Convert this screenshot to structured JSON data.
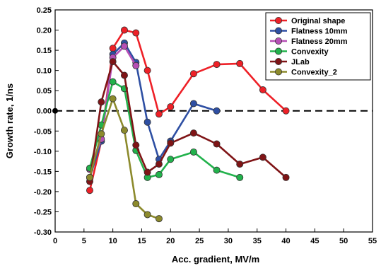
{
  "chart_data": {
    "type": "line",
    "xlabel": "Acc. gradient, MV/m",
    "ylabel": "Growth rate, 1/ns",
    "xlim": [
      0,
      55
    ],
    "ylim": [
      -0.3,
      0.25
    ],
    "xticks": [
      "0",
      "5",
      "10",
      "15",
      "20",
      "25",
      "30",
      "35",
      "40",
      "45",
      "50",
      "55"
    ],
    "yticks": [
      "-0.30",
      "-0.25",
      "-0.20",
      "-0.15",
      "-0.10",
      "-0.05",
      "0.00",
      "0.05",
      "0.10",
      "0.15",
      "0.20",
      "0.25"
    ],
    "grid": false,
    "legend_position": "top-right",
    "reference_line": {
      "y": 0,
      "style": "dashed"
    },
    "origin_marker": {
      "x": 0,
      "y": 0,
      "color": "#000000"
    },
    "series": [
      {
        "name": "Original shape",
        "color": "#ee2027",
        "x": [
          6,
          8,
          10,
          12,
          14,
          16,
          18,
          20,
          24,
          28,
          32,
          36,
          40
        ],
        "y": [
          -0.197,
          -0.075,
          0.155,
          0.2,
          0.193,
          0.1,
          -0.008,
          0.01,
          0.092,
          0.115,
          0.117,
          0.052,
          0.0
        ]
      },
      {
        "name": "Flatness 10mm",
        "color": "#2e4fa3",
        "x": [
          6,
          8,
          10,
          12,
          14,
          16,
          18,
          20,
          24,
          28
        ],
        "y": [
          -0.165,
          -0.075,
          0.14,
          0.168,
          0.12,
          -0.028,
          -0.12,
          -0.075,
          0.018,
          0.0
        ]
      },
      {
        "name": "Flatness 20mm",
        "color": "#b64fb5",
        "x": [
          6,
          8,
          10,
          12,
          14
        ],
        "y": [
          -0.145,
          -0.07,
          0.132,
          0.16,
          0.112
        ]
      },
      {
        "name": "Convexity",
        "color": "#22b24c",
        "x": [
          6,
          8,
          10,
          12,
          14,
          16,
          18,
          20,
          24,
          28,
          32
        ],
        "y": [
          -0.142,
          -0.035,
          0.072,
          0.055,
          -0.098,
          -0.165,
          -0.158,
          -0.12,
          -0.102,
          -0.147,
          -0.165
        ]
      },
      {
        "name": "JLab",
        "color": "#7f1416",
        "x": [
          6,
          8,
          10,
          12,
          14,
          16,
          18,
          20,
          24,
          28,
          32,
          36,
          40
        ],
        "y": [
          -0.175,
          0.022,
          0.122,
          0.088,
          -0.085,
          -0.152,
          -0.132,
          -0.08,
          -0.055,
          -0.082,
          -0.132,
          -0.115,
          -0.165
        ]
      },
      {
        "name": "Convexity_2",
        "color": "#8c8a2c",
        "x": [
          6,
          8,
          10,
          12,
          14,
          16,
          18
        ],
        "y": [
          -0.165,
          -0.057,
          0.03,
          -0.048,
          -0.23,
          -0.257,
          -0.267
        ]
      }
    ]
  }
}
